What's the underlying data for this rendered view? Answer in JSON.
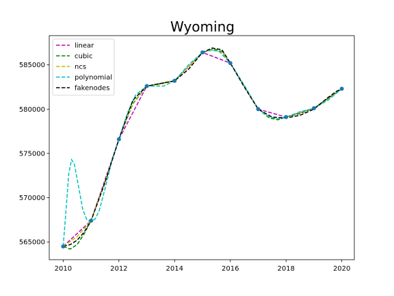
{
  "chart_data": {
    "type": "line",
    "title": "Wyoming",
    "xlabel": "",
    "ylabel": "",
    "xlim": [
      2009.5,
      2020.45
    ],
    "ylim": [
      563000,
      588300
    ],
    "xticks": [
      2010,
      2012,
      2014,
      2016,
      2018,
      2020
    ],
    "yticks": [
      565000,
      570000,
      575000,
      580000,
      585000
    ],
    "grid": false,
    "legend_position": "top-left",
    "points": {
      "x": [
        2010,
        2011,
        2012,
        2013,
        2014,
        2015,
        2016,
        2017,
        2018,
        2019,
        2020
      ],
      "y": [
        564500,
        567400,
        576600,
        582600,
        583200,
        586400,
        585200,
        580000,
        579100,
        580100,
        582300
      ],
      "color": "#1f77b4"
    },
    "series": [
      {
        "name": "linear",
        "color": "#bf00bf",
        "x": [
          2010,
          2011,
          2012,
          2013,
          2014,
          2015,
          2016,
          2017,
          2018,
          2019,
          2020
        ],
        "y": [
          564500,
          567400,
          576600,
          582600,
          583200,
          586400,
          585200,
          580000,
          579100,
          580100,
          582300
        ]
      },
      {
        "name": "cubic",
        "color": "#008000",
        "x": [
          2010,
          2010.25,
          2010.5,
          2010.75,
          2011,
          2011.5,
          2012,
          2012.5,
          2013,
          2013.5,
          2014,
          2014.5,
          2015,
          2015.4,
          2015.7,
          2016,
          2016.5,
          2017,
          2017.4,
          2017.7,
          2018,
          2018.5,
          2019,
          2019.5,
          2020
        ],
        "y": [
          564500,
          564200,
          564700,
          565900,
          567400,
          571800,
          576600,
          580600,
          582600,
          582900,
          583200,
          584800,
          586400,
          586800,
          586500,
          585200,
          582600,
          580000,
          579000,
          578800,
          579100,
          579500,
          580100,
          581200,
          582300
        ]
      },
      {
        "name": "ncs",
        "color": "#bfbf00",
        "x": [
          2010,
          2010.5,
          2011,
          2011.5,
          2012,
          2012.5,
          2013,
          2013.5,
          2014,
          2014.5,
          2015,
          2015.4,
          2015.7,
          2016,
          2016.5,
          2017,
          2017.4,
          2017.7,
          2018,
          2018.5,
          2019,
          2019.5,
          2020
        ],
        "y": [
          564500,
          565600,
          567400,
          571700,
          576600,
          580700,
          582600,
          582800,
          583200,
          584800,
          586400,
          586700,
          586400,
          585200,
          582600,
          580000,
          579100,
          578900,
          579100,
          579600,
          580100,
          581100,
          582300
        ]
      },
      {
        "name": "polynomial",
        "color": "#00bfbf",
        "x": [
          2010,
          2010.1,
          2010.2,
          2010.3,
          2010.4,
          2010.55,
          2010.7,
          2010.85,
          2011,
          2011.15,
          2011.3,
          2011.5,
          2011.75,
          2012,
          2012.3,
          2012.6,
          2013,
          2013.3,
          2013.6,
          2014,
          2014.5,
          2015,
          2015.3,
          2015.6,
          2016,
          2016.5,
          2017,
          2017.4,
          2017.7,
          2018,
          2018.5,
          2019,
          2019.5,
          2020
        ],
        "y": [
          564500,
          568500,
          572700,
          574300,
          573800,
          571300,
          568700,
          567500,
          567300,
          567600,
          568600,
          571000,
          574200,
          576600,
          579500,
          581600,
          582600,
          582600,
          582600,
          583200,
          585000,
          586400,
          586700,
          586500,
          585200,
          582700,
          580000,
          579100,
          578900,
          579100,
          579700,
          580100,
          581000,
          582300
        ]
      },
      {
        "name": "fakenodes",
        "color": "#000000",
        "x": [
          2010,
          2010.25,
          2010.5,
          2010.75,
          2011,
          2011.5,
          2012,
          2012.5,
          2013,
          2013.5,
          2014,
          2014.5,
          2015,
          2015.35,
          2015.7,
          2016,
          2016.5,
          2017,
          2017.5,
          2018,
          2018.5,
          2019,
          2019.5,
          2019.8,
          2020
        ],
        "y": [
          564500,
          564700,
          565200,
          566100,
          567400,
          571700,
          576600,
          581000,
          582600,
          582900,
          583200,
          584500,
          586400,
          586900,
          586700,
          585200,
          582500,
          580000,
          579100,
          579000,
          579300,
          580000,
          581300,
          582000,
          582300
        ]
      }
    ]
  }
}
